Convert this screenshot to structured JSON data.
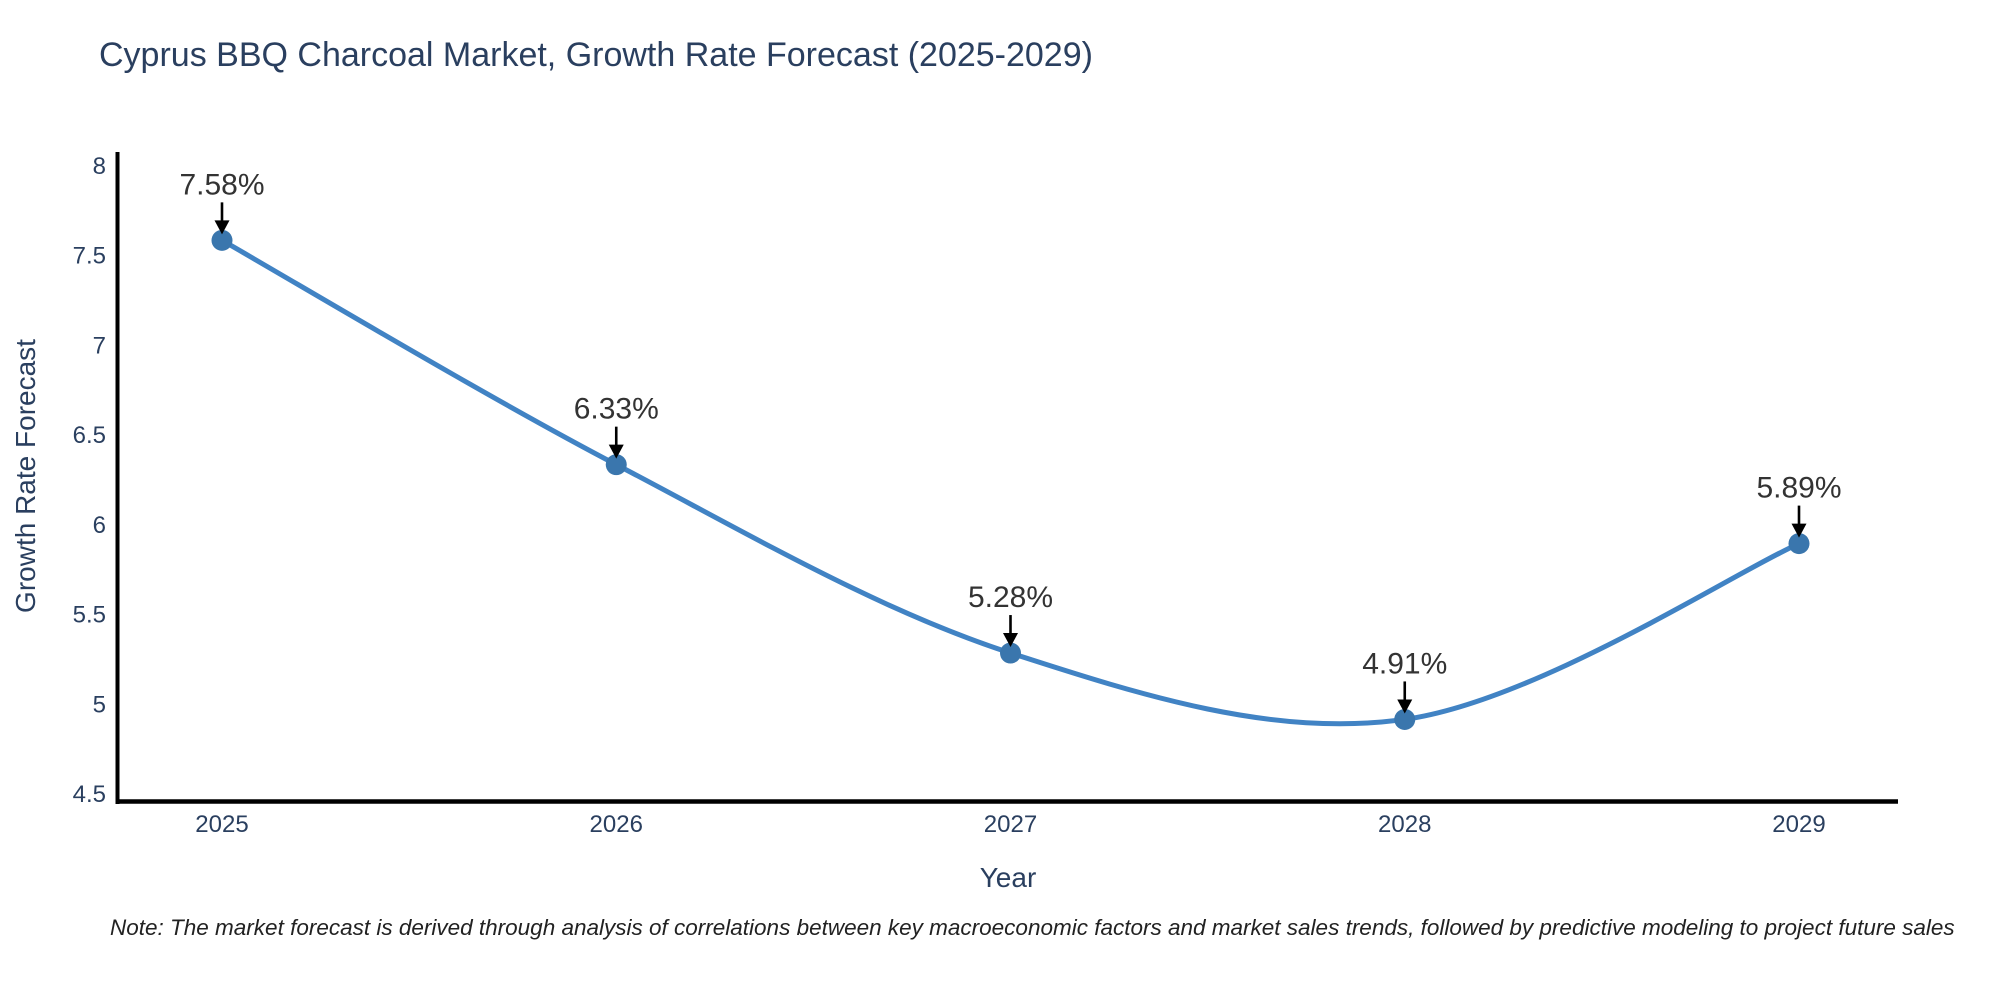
{
  "chart_data": {
    "type": "line",
    "title": "Cyprus BBQ Charcoal Market, Growth Rate Forecast (2025-2029)",
    "xlabel": "Year",
    "ylabel": "Growth Rate Forecast",
    "x": [
      2025,
      2026,
      2027,
      2028,
      2029
    ],
    "series": [
      {
        "name": "Growth Rate Forecast",
        "values": [
          7.58,
          6.33,
          5.28,
          4.91,
          5.89
        ]
      }
    ],
    "point_labels": [
      "7.58%",
      "6.33%",
      "5.28%",
      "4.91%",
      "5.89%"
    ],
    "x_tick_labels": [
      "2025",
      "2026",
      "2027",
      "2028",
      "2029"
    ],
    "y_tick_labels": [
      "8",
      "7.5",
      "7",
      "6.5",
      "6",
      "5.5",
      "5",
      "4.5"
    ],
    "y_tick_values": [
      8,
      7.5,
      7,
      6.5,
      6,
      5.5,
      5,
      4.5
    ],
    "ylim": [
      4.46,
      8.07
    ],
    "xlim": [
      2024.74,
      2029.25
    ],
    "line_shape": "spline",
    "grid": false,
    "legend": "none",
    "annotation_style": "arrow-down-to-point",
    "colors": {
      "line": "#4183c4",
      "marker": "#3a76ad",
      "axis_line": "#000000",
      "heading_text": "#2a3f5f",
      "annotation_text": "#333333",
      "note_text": "#222222"
    }
  },
  "note": "Note: The market forecast is derived through analysis of correlations between key macroeconomic factors and market sales trends, followed by predictive modeling to project future sales"
}
